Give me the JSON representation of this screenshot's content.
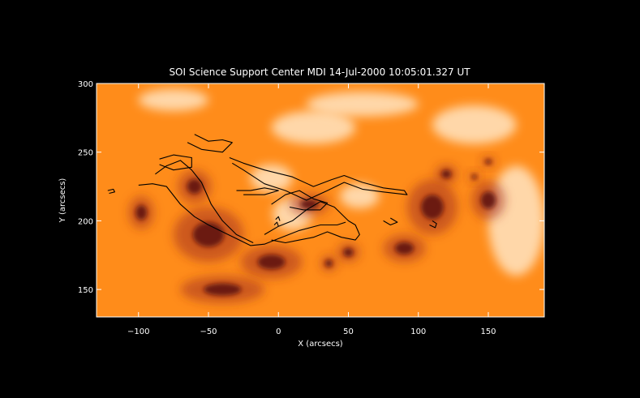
{
  "chart_data": {
    "type": "heatmap",
    "title": "SOI Science Support Center MDI  14-Jul-2000 10:05:01.327 UT",
    "xlabel": "X (arcsecs)",
    "ylabel": "Y (arcsecs)",
    "xlim": [
      -130,
      190
    ],
    "ylim": [
      130,
      300
    ],
    "xticks": [
      -100,
      -50,
      0,
      50,
      100,
      150
    ],
    "yticks": [
      150,
      200,
      250,
      300
    ],
    "xtick_labels": [
      "−100",
      "−50",
      "0",
      "50",
      "100",
      "150"
    ],
    "ytick_labels": [
      "150",
      "200",
      "250",
      "300"
    ],
    "background_color": "#000000",
    "colors": {
      "base": "#ff8c1a",
      "plage": "#fff0d8",
      "sunspot": "#5a0c10",
      "contour": "#000000"
    },
    "bright_regions": [
      {
        "x": -5,
        "y": 231,
        "rx": 15,
        "ry": 10
      },
      {
        "x": 58,
        "y": 218,
        "rx": 14,
        "ry": 9
      },
      {
        "x": 10,
        "y": 205,
        "rx": 14,
        "ry": 12
      },
      {
        "x": 25,
        "y": 268,
        "rx": 30,
        "ry": 12
      },
      {
        "x": 140,
        "y": 270,
        "rx": 30,
        "ry": 14
      },
      {
        "x": 170,
        "y": 200,
        "rx": 20,
        "ry": 40
      },
      {
        "x": -75,
        "y": 288,
        "rx": 25,
        "ry": 8
      },
      {
        "x": 60,
        "y": 285,
        "rx": 40,
        "ry": 9
      }
    ],
    "dark_regions": [
      {
        "x": -98,
        "y": 206,
        "rx": 9,
        "ry": 12
      },
      {
        "x": 50,
        "y": 177,
        "rx": 8,
        "ry": 7
      },
      {
        "x": 36,
        "y": 169,
        "rx": 6,
        "ry": 6
      },
      {
        "x": 120,
        "y": 234,
        "rx": 8,
        "ry": 7
      },
      {
        "x": 150,
        "y": 243,
        "rx": 5,
        "ry": 4
      },
      {
        "x": 140,
        "y": 232,
        "rx": 4,
        "ry": 4
      },
      {
        "x": -50,
        "y": 190,
        "rx": 25,
        "ry": 20
      },
      {
        "x": -5,
        "y": 170,
        "rx": 22,
        "ry": 12
      },
      {
        "x": -60,
        "y": 225,
        "rx": 12,
        "ry": 12
      },
      {
        "x": 22,
        "y": 212,
        "rx": 14,
        "ry": 8
      },
      {
        "x": -40,
        "y": 150,
        "rx": 30,
        "ry": 10
      },
      {
        "x": 110,
        "y": 210,
        "rx": 18,
        "ry": 20
      },
      {
        "x": 150,
        "y": 215,
        "rx": 12,
        "ry": 14
      },
      {
        "x": 90,
        "y": 180,
        "rx": 15,
        "ry": 10
      }
    ],
    "contours": [
      [
        [
          -100,
          226
        ],
        [
          -90,
          227
        ],
        [
          -80,
          225
        ],
        [
          -70,
          212
        ],
        [
          -60,
          203
        ],
        [
          -50,
          197
        ],
        [
          -40,
          192
        ],
        [
          -30,
          187
        ],
        [
          -20,
          182
        ],
        [
          -10,
          183
        ],
        [
          0,
          187
        ],
        [
          15,
          193
        ],
        [
          30,
          197
        ],
        [
          42,
          197
        ],
        [
          48,
          199
        ]
      ],
      [
        [
          -88,
          234
        ],
        [
          -80,
          240
        ],
        [
          -70,
          244
        ],
        [
          -62,
          237
        ],
        [
          -55,
          228
        ],
        [
          -48,
          212
        ],
        [
          -40,
          200
        ],
        [
          -30,
          190
        ],
        [
          -18,
          184
        ]
      ],
      [
        [
          -60,
          263
        ],
        [
          -50,
          258
        ],
        [
          -40,
          259
        ],
        [
          -33,
          257
        ],
        [
          -40,
          250
        ],
        [
          -55,
          252
        ],
        [
          -65,
          257
        ]
      ],
      [
        [
          -85,
          245
        ],
        [
          -75,
          248
        ],
        [
          -62,
          246
        ],
        [
          -62,
          239
        ],
        [
          -75,
          237
        ],
        [
          -85,
          241
        ]
      ],
      [
        [
          -35,
          246
        ],
        [
          -25,
          242
        ],
        [
          -10,
          237
        ],
        [
          10,
          232
        ],
        [
          25,
          225
        ],
        [
          38,
          230
        ],
        [
          47,
          233
        ],
        [
          60,
          228
        ],
        [
          75,
          224
        ],
        [
          90,
          222
        ],
        [
          92,
          219
        ],
        [
          75,
          221
        ],
        [
          60,
          223
        ],
        [
          47,
          228
        ],
        [
          35,
          222
        ],
        [
          20,
          215
        ],
        [
          5,
          222
        ],
        [
          -10,
          227
        ],
        [
          -25,
          237
        ],
        [
          -33,
          242
        ]
      ],
      [
        [
          -30,
          222
        ],
        [
          -20,
          222
        ],
        [
          -10,
          224
        ],
        [
          0,
          222
        ],
        [
          -10,
          219
        ],
        [
          -25,
          219
        ]
      ],
      [
        [
          -10,
          190
        ],
        [
          0,
          196
        ],
        [
          10,
          200
        ],
        [
          20,
          208
        ],
        [
          30,
          214
        ],
        [
          40,
          210
        ],
        [
          50,
          200
        ],
        [
          55,
          197
        ],
        [
          58,
          190
        ],
        [
          55,
          186
        ],
        [
          45,
          188
        ],
        [
          35,
          192
        ],
        [
          25,
          188
        ],
        [
          15,
          186
        ],
        [
          5,
          184
        ],
        [
          -5,
          186
        ]
      ],
      [
        [
          -5,
          212
        ],
        [
          5,
          219
        ],
        [
          15,
          222
        ],
        [
          25,
          216
        ],
        [
          35,
          213
        ],
        [
          30,
          208
        ],
        [
          18,
          208
        ],
        [
          8,
          210
        ]
      ],
      [
        [
          75,
          200
        ],
        [
          80,
          197
        ],
        [
          85,
          199
        ],
        [
          80,
          202
        ]
      ],
      [
        [
          108,
          197
        ],
        [
          112,
          195
        ],
        [
          113,
          198
        ],
        [
          110,
          200
        ]
      ],
      [
        [
          -122,
          222
        ],
        [
          -118,
          223
        ],
        [
          -117,
          221
        ],
        [
          -121,
          220
        ]
      ],
      [
        [
          -2,
          201
        ],
        [
          0,
          203
        ],
        [
          1,
          200
        ]
      ],
      [
        [
          -3,
          197
        ],
        [
          -1,
          199
        ],
        [
          0,
          196
        ]
      ]
    ]
  }
}
